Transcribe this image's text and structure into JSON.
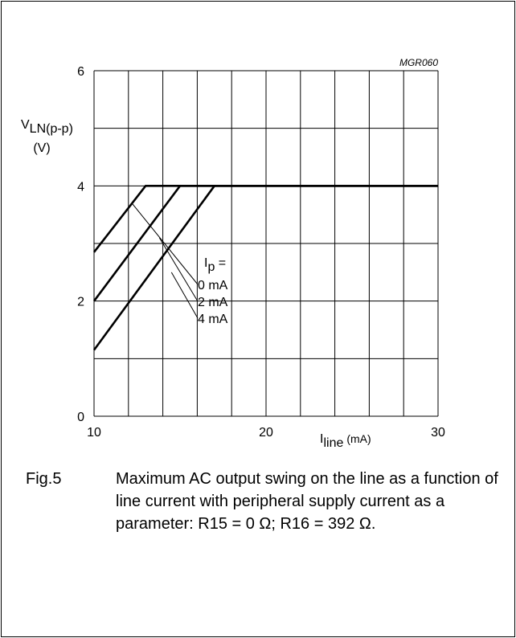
{
  "chart_data": {
    "type": "line",
    "figure_code": "MGR060",
    "xlim": [
      10,
      30
    ],
    "ylim": [
      0,
      6
    ],
    "x_ticks": [
      "10",
      "20",
      "30"
    ],
    "y_ticks": [
      "0",
      "2",
      "4",
      "6"
    ],
    "grid": true,
    "ylabel": {
      "main": "V",
      "sub": "LN(p-p)",
      "unit": "(V)"
    },
    "xlabel": {
      "main": "I",
      "sub": "line",
      "unit": "(mA)"
    },
    "legend": {
      "title_main": "I",
      "title_sub": "p",
      "title_suffix": " =",
      "entries": [
        "0 mA",
        "2 mA",
        "4 mA"
      ]
    },
    "series": [
      {
        "name": "0 mA",
        "points": [
          [
            10,
            2.85
          ],
          [
            13,
            4.0
          ],
          [
            30,
            4.0
          ]
        ]
      },
      {
        "name": "2 mA",
        "points": [
          [
            10,
            2.0
          ],
          [
            15,
            4.0
          ],
          [
            30,
            4.0
          ]
        ]
      },
      {
        "name": "4 mA",
        "points": [
          [
            10,
            1.15
          ],
          [
            17,
            4.0
          ],
          [
            30,
            4.0
          ]
        ]
      }
    ]
  },
  "caption": {
    "number": "Fig.5",
    "text": "Maximum AC output swing on the line as a function of line current with peripheral supply current as a parameter: R15 = 0 Ω; R16 = 392 Ω."
  }
}
